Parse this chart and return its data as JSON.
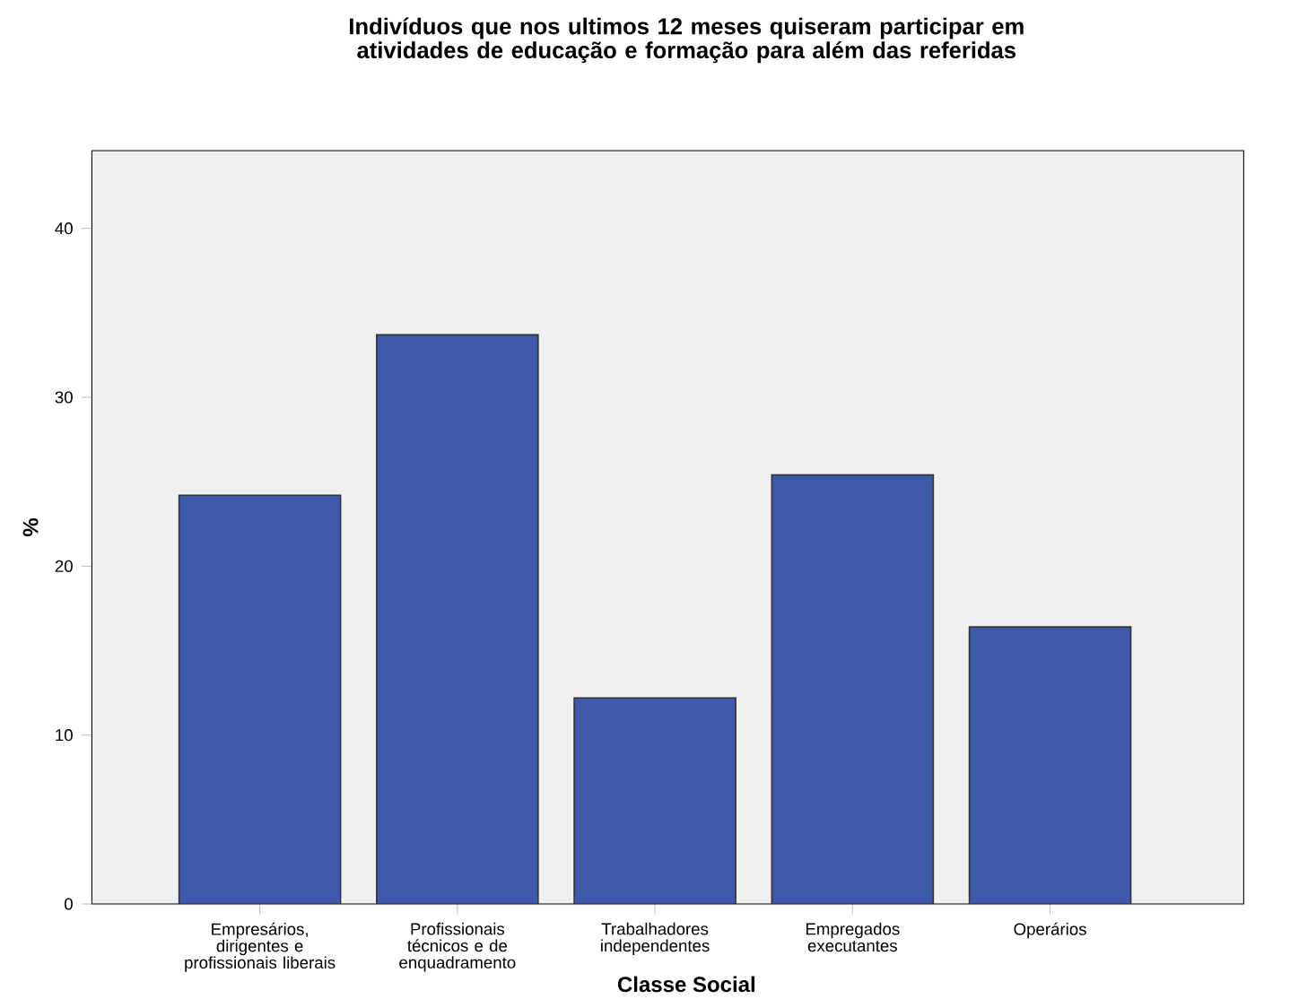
{
  "chart_data": {
    "type": "bar",
    "title": "Indivíduos que nos ultimos 12 meses quiseram participar em atividades de educação e formação para além das referidas",
    "categories": [
      "Empresários, dirigentes e profissionais liberais",
      "Profissionais técnicos e de enquadramento",
      "Trabalhadores independentes",
      "Empregados executantes",
      "Operários"
    ],
    "values": [
      24.2,
      33.7,
      12.2,
      25.4,
      16.4
    ],
    "color": "#3e58ac",
    "xlabel": "Classe Social",
    "ylabel": "%",
    "ylim": [
      0,
      44.6
    ],
    "yticks": [
      0,
      10,
      20,
      30,
      40
    ],
    "grid": false
  }
}
